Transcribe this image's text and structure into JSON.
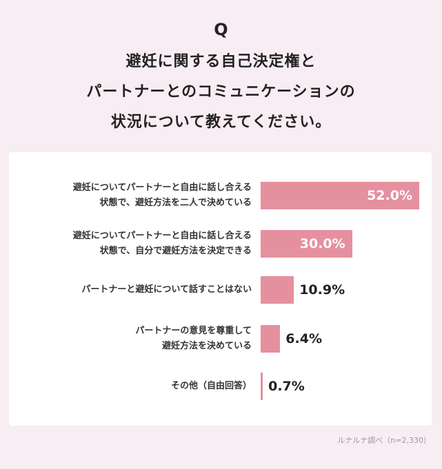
{
  "question": {
    "mark": "Q",
    "lines": [
      "避妊に関する自己決定権と",
      "パートナーとのコミュニケーションの",
      "状況について教えてください。"
    ]
  },
  "chart_data": {
    "type": "bar",
    "orientation": "horizontal",
    "categories": [
      [
        "避妊についてパートナーと自由に話し合える",
        "状態で、避妊方法を二人で決めている"
      ],
      [
        "避妊についてパートナーと自由に話し合える",
        "状態で、自分で避妊方法を決定できる"
      ],
      [
        "パートナーと避妊について話すことはない"
      ],
      [
        "パートナーの意見を尊重して",
        "避妊方法を決めている"
      ],
      [
        "その他（自由回答）"
      ]
    ],
    "values": [
      52.0,
      30.0,
      10.9,
      6.4,
      0.7
    ],
    "value_labels": [
      "52.0%",
      "30.0%",
      "10.9%",
      "6.4%",
      "0.7%"
    ],
    "xlim": [
      0,
      52.0
    ],
    "unit": "%",
    "bar_color": "#e5909f",
    "grid": false
  },
  "source": "ルナルナ調べ（n=2,330）"
}
